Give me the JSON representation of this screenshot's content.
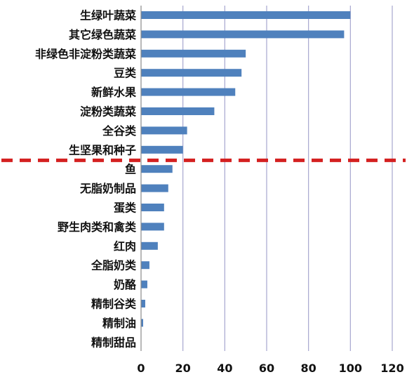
{
  "chart_data": {
    "type": "bar",
    "orientation": "horizontal",
    "categories": [
      "生绿叶蔬菜",
      "其它绿色蔬菜",
      "非绿色非淀粉类蔬菜",
      "豆类",
      "新鲜水果",
      "淀粉类蔬菜",
      "全谷类",
      "生坚果和种子",
      "鱼",
      "无脂奶制品",
      "蛋类",
      "野生肉类和禽类",
      "红肉",
      "全脂奶类",
      "奶酪",
      "精制谷类",
      "精制油",
      "精制甜品"
    ],
    "values": [
      100,
      97,
      50,
      48,
      45,
      35,
      22,
      20,
      15,
      13,
      11,
      11,
      8,
      4,
      3,
      2,
      1,
      0
    ],
    "xlim": [
      0,
      120
    ],
    "xticks": [
      "0",
      "20",
      "40",
      "60",
      "80",
      "100",
      "120"
    ],
    "grid": "vertical",
    "bar_color": "#4f81bd",
    "grid_color": "#a6a6cf",
    "divider": {
      "after_category": "生坚果和种子",
      "style": "dashed",
      "color": "#d42020"
    }
  }
}
